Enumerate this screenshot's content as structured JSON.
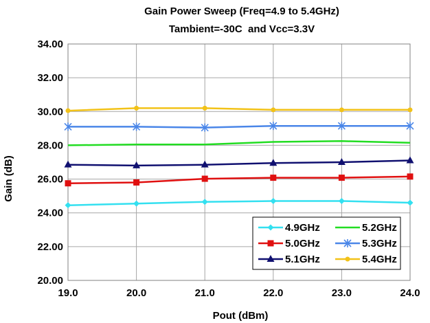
{
  "chart_data": {
    "type": "line",
    "title": "Gain Power Sweep (Freq=4.9 to 5.4GHz)",
    "subtitle": "Tambient=-30C  and Vcc=3.3V",
    "xlabel": "Pout (dBm)",
    "ylabel": "Gain (dB)",
    "xlim": [
      19,
      24
    ],
    "ylim": [
      20,
      34
    ],
    "x": [
      19,
      20,
      21,
      22,
      23,
      24
    ],
    "x_tick_labels": [
      "19.0",
      "20.0",
      "21.0",
      "22.0",
      "23.0",
      "24.0"
    ],
    "y_tick_labels": [
      "20.00",
      "22.00",
      "24.00",
      "26.00",
      "28.00",
      "30.00",
      "32.00",
      "34.00"
    ],
    "grid": true,
    "legend_position": "bottom-right",
    "series": [
      {
        "name": "4.9GHz",
        "color": "#33e0f0",
        "marker": "diamond",
        "values": [
          24.45,
          24.55,
          24.65,
          24.7,
          24.7,
          24.6
        ]
      },
      {
        "name": "5.0GHz",
        "color": "#e01010",
        "marker": "square",
        "values": [
          25.75,
          25.8,
          26.02,
          26.08,
          26.08,
          26.15
        ]
      },
      {
        "name": "5.1GHz",
        "color": "#101070",
        "marker": "triangle",
        "values": [
          26.85,
          26.8,
          26.85,
          26.95,
          27.0,
          27.1
        ]
      },
      {
        "name": "5.2GHz",
        "color": "#22dd22",
        "marker": "none",
        "values": [
          28.0,
          28.05,
          28.05,
          28.2,
          28.25,
          28.15
        ]
      },
      {
        "name": "5.3GHz",
        "color": "#4a86e8",
        "marker": "star",
        "values": [
          29.1,
          29.1,
          29.05,
          29.15,
          29.15,
          29.15
        ]
      },
      {
        "name": "5.4GHz",
        "color": "#f2c218",
        "marker": "circle",
        "values": [
          30.05,
          30.2,
          30.2,
          30.1,
          30.1,
          30.1
        ]
      }
    ]
  }
}
